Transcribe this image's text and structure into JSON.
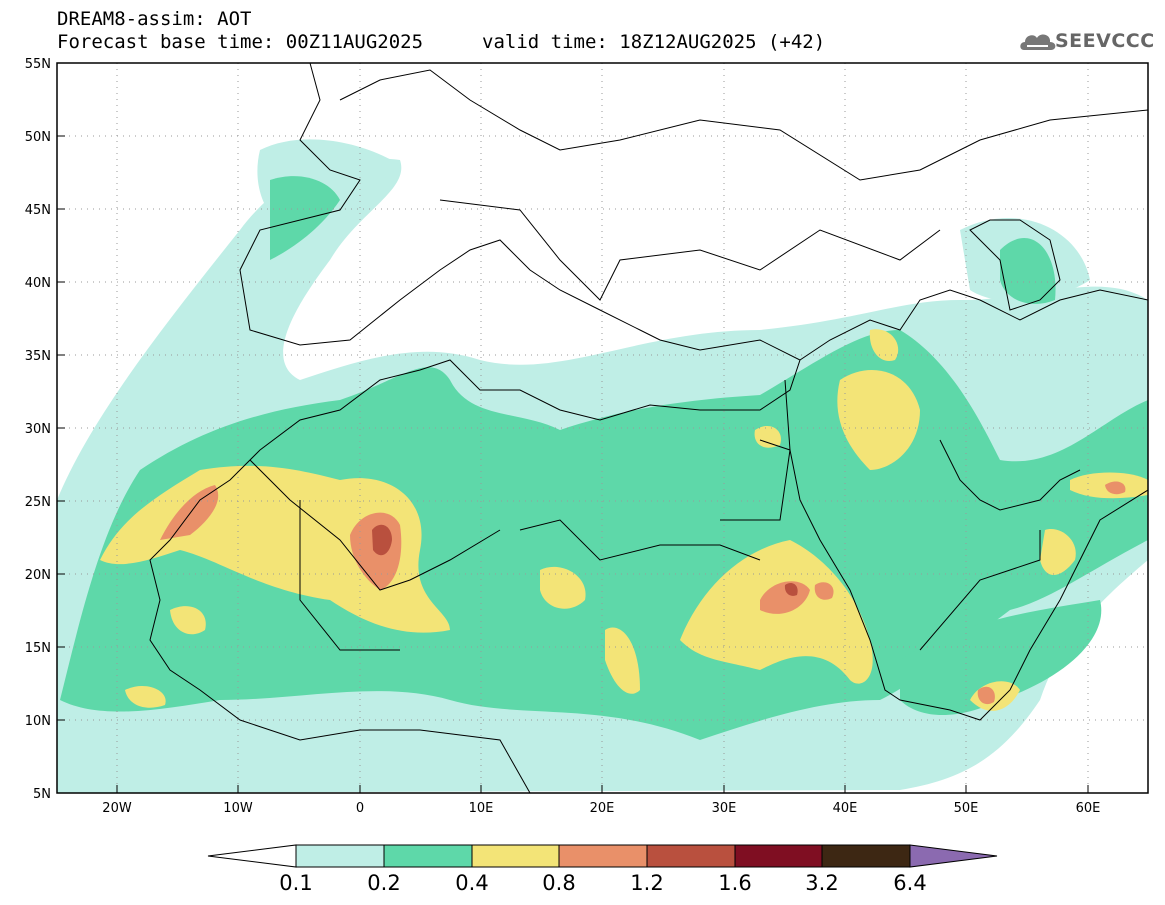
{
  "header": {
    "model": "DREAM8-assim: AOT",
    "base_time": "Forecast base time: 00Z11AUG2025",
    "valid_time": "valid time: 18Z12AUG2025 (+42)"
  },
  "logo": {
    "text": "SEEVCCC",
    "icon": "cloud-icon"
  },
  "map": {
    "lon_range": [
      -25,
      65
    ],
    "lat_range": [
      5,
      55
    ],
    "grid": "dotted",
    "lat_labels": [
      "55N",
      "50N",
      "45N",
      "40N",
      "35N",
      "30N",
      "25N",
      "20N",
      "15N",
      "10N",
      "5N"
    ],
    "lon_labels": [
      "20W",
      "10W",
      "0",
      "10E",
      "20E",
      "30E",
      "40E",
      "50E",
      "60E"
    ]
  },
  "colorbar": {
    "colors": [
      "#bfeee6",
      "#5ed8a9",
      "#f3e477",
      "#e99069",
      "#b9503e",
      "#7f0e22",
      "#3d2713",
      "#8b6ab0"
    ],
    "labels": [
      "0.1",
      "0.2",
      "0.4",
      "0.8",
      "1.2",
      "1.6",
      "3.2",
      "6.4"
    ]
  }
}
